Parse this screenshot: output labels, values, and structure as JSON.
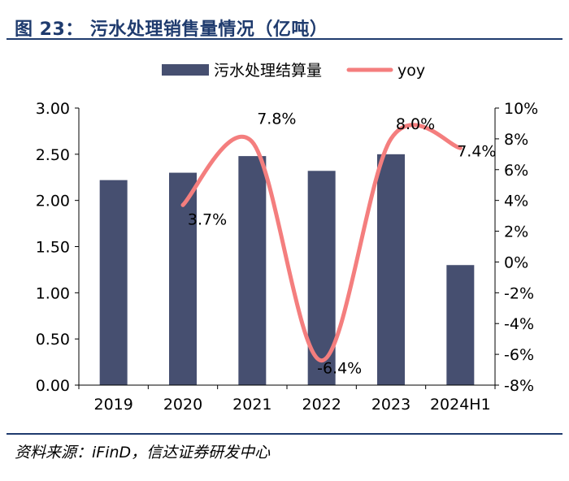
{
  "header": {
    "title": "图 23：  污水处理销售量情况（亿吨）"
  },
  "footer": {
    "source": "资料来源：iFinD，信达证券研发中心"
  },
  "colors": {
    "bar": "#464f70",
    "line": "#f47e7e",
    "rule": "#1f3b6e",
    "axis": "#000000"
  },
  "chart_data": {
    "type": "bar+line",
    "title": "污水处理销售量情况（亿吨）",
    "categories": [
      "2019",
      "2020",
      "2021",
      "2022",
      "2023",
      "2024H1"
    ],
    "series": [
      {
        "name": "污水处理结算量",
        "type": "bar",
        "axis": "left",
        "values": [
          2.22,
          2.3,
          2.48,
          2.32,
          2.5,
          1.3
        ]
      },
      {
        "name": "yoy",
        "type": "line",
        "axis": "right",
        "values": [
          null,
          3.7,
          7.8,
          -6.4,
          8.0,
          7.4
        ],
        "labels": [
          "",
          "3.7%",
          "7.8%",
          "-6.4%",
          "8.0%",
          "7.4%"
        ]
      }
    ],
    "left_axis": {
      "min": 0,
      "max": 3,
      "ticks": [
        "0.00",
        "0.50",
        "1.00",
        "1.50",
        "2.00",
        "2.50",
        "3.00"
      ]
    },
    "right_axis": {
      "min": -8,
      "max": 10,
      "ticks": [
        "-8%",
        "-6%",
        "-4%",
        "-2%",
        "0%",
        "2%",
        "4%",
        "6%",
        "8%",
        "10%"
      ]
    },
    "legend": {
      "position": "top-center",
      "entries": [
        "污水处理结算量",
        "yoy"
      ]
    },
    "grid": false
  }
}
